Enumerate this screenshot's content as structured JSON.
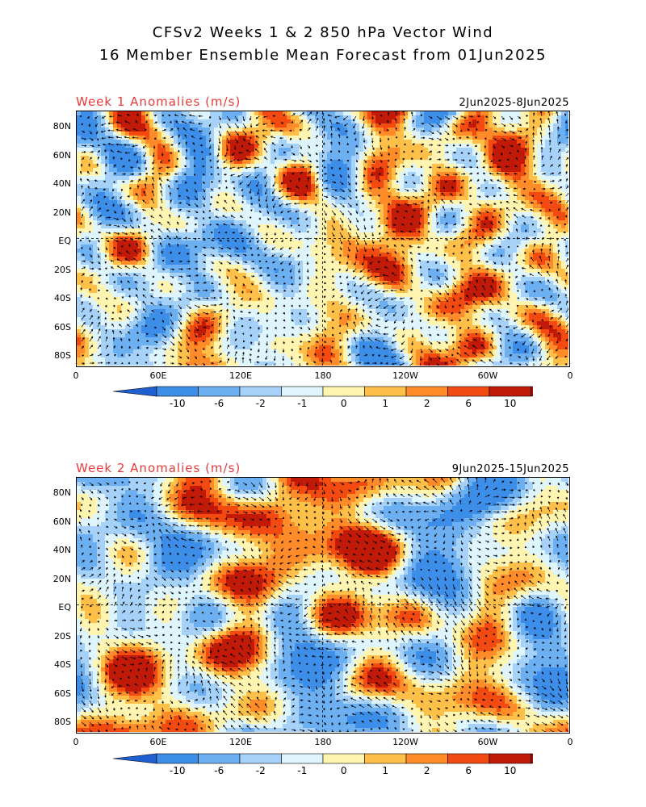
{
  "title_line1": "CFSv2 Weeks 1 & 2 850 hPa Vector Wind",
  "title_line2": "16 Member Ensemble Mean Forecast from 01Jun2025",
  "panels": [
    {
      "label": "Week 1 Anomalies (m/s)",
      "dates": "2Jun2025-8Jun2025"
    },
    {
      "label": "Week 2 Anomalies (m/s)",
      "dates": "9Jun2025-15Jun2025"
    }
  ],
  "lat_labels": [
    "80N",
    "60N",
    "40N",
    "20N",
    "EQ",
    "20S",
    "40S",
    "60S",
    "80S"
  ],
  "lon_labels": [
    "0",
    "60E",
    "120E",
    "180",
    "120W",
    "60W",
    "0"
  ],
  "colorbar": {
    "labels": [
      "-10",
      "-6",
      "-2",
      "-1",
      "0",
      "1",
      "2",
      "6",
      "10"
    ],
    "colors": [
      "#1f5fd0",
      "#3c8ee8",
      "#6cb0f2",
      "#a6d2fa",
      "#dff5fd",
      "#fff4b0",
      "#ffc04a",
      "#ff8c28",
      "#f24a10",
      "#c21a08",
      "#a01010"
    ]
  }
}
